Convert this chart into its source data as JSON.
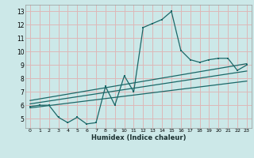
{
  "xlabel": "Humidex (Indice chaleur)",
  "ylabel": "",
  "xlim": [
    -0.5,
    23.5
  ],
  "ylim": [
    4.3,
    13.5
  ],
  "yticks": [
    5,
    6,
    7,
    8,
    9,
    10,
    11,
    12,
    13
  ],
  "xticks": [
    0,
    1,
    2,
    3,
    4,
    5,
    6,
    7,
    8,
    9,
    10,
    11,
    12,
    13,
    14,
    15,
    16,
    17,
    18,
    19,
    20,
    21,
    22,
    23
  ],
  "bg_color": "#cce8e8",
  "grid_color": "#ddb8b8",
  "line_color": "#1a6868",
  "data_x": [
    0,
    1,
    2,
    3,
    4,
    5,
    6,
    7,
    8,
    9,
    10,
    11,
    12,
    13,
    14,
    15,
    16,
    17,
    18,
    19,
    20,
    21,
    22,
    23
  ],
  "data_y": [
    5.9,
    6.0,
    6.0,
    5.1,
    4.7,
    5.1,
    4.6,
    4.7,
    7.4,
    6.0,
    8.2,
    7.0,
    11.8,
    12.1,
    12.4,
    13.0,
    10.1,
    9.4,
    9.2,
    9.4,
    9.5,
    9.5,
    8.6,
    9.0
  ],
  "reg_lines": [
    {
      "x": [
        0,
        23
      ],
      "y": [
        5.8,
        7.8
      ]
    },
    {
      "x": [
        0,
        23
      ],
      "y": [
        6.1,
        8.55
      ]
    },
    {
      "x": [
        0,
        23
      ],
      "y": [
        6.35,
        9.1
      ]
    }
  ]
}
